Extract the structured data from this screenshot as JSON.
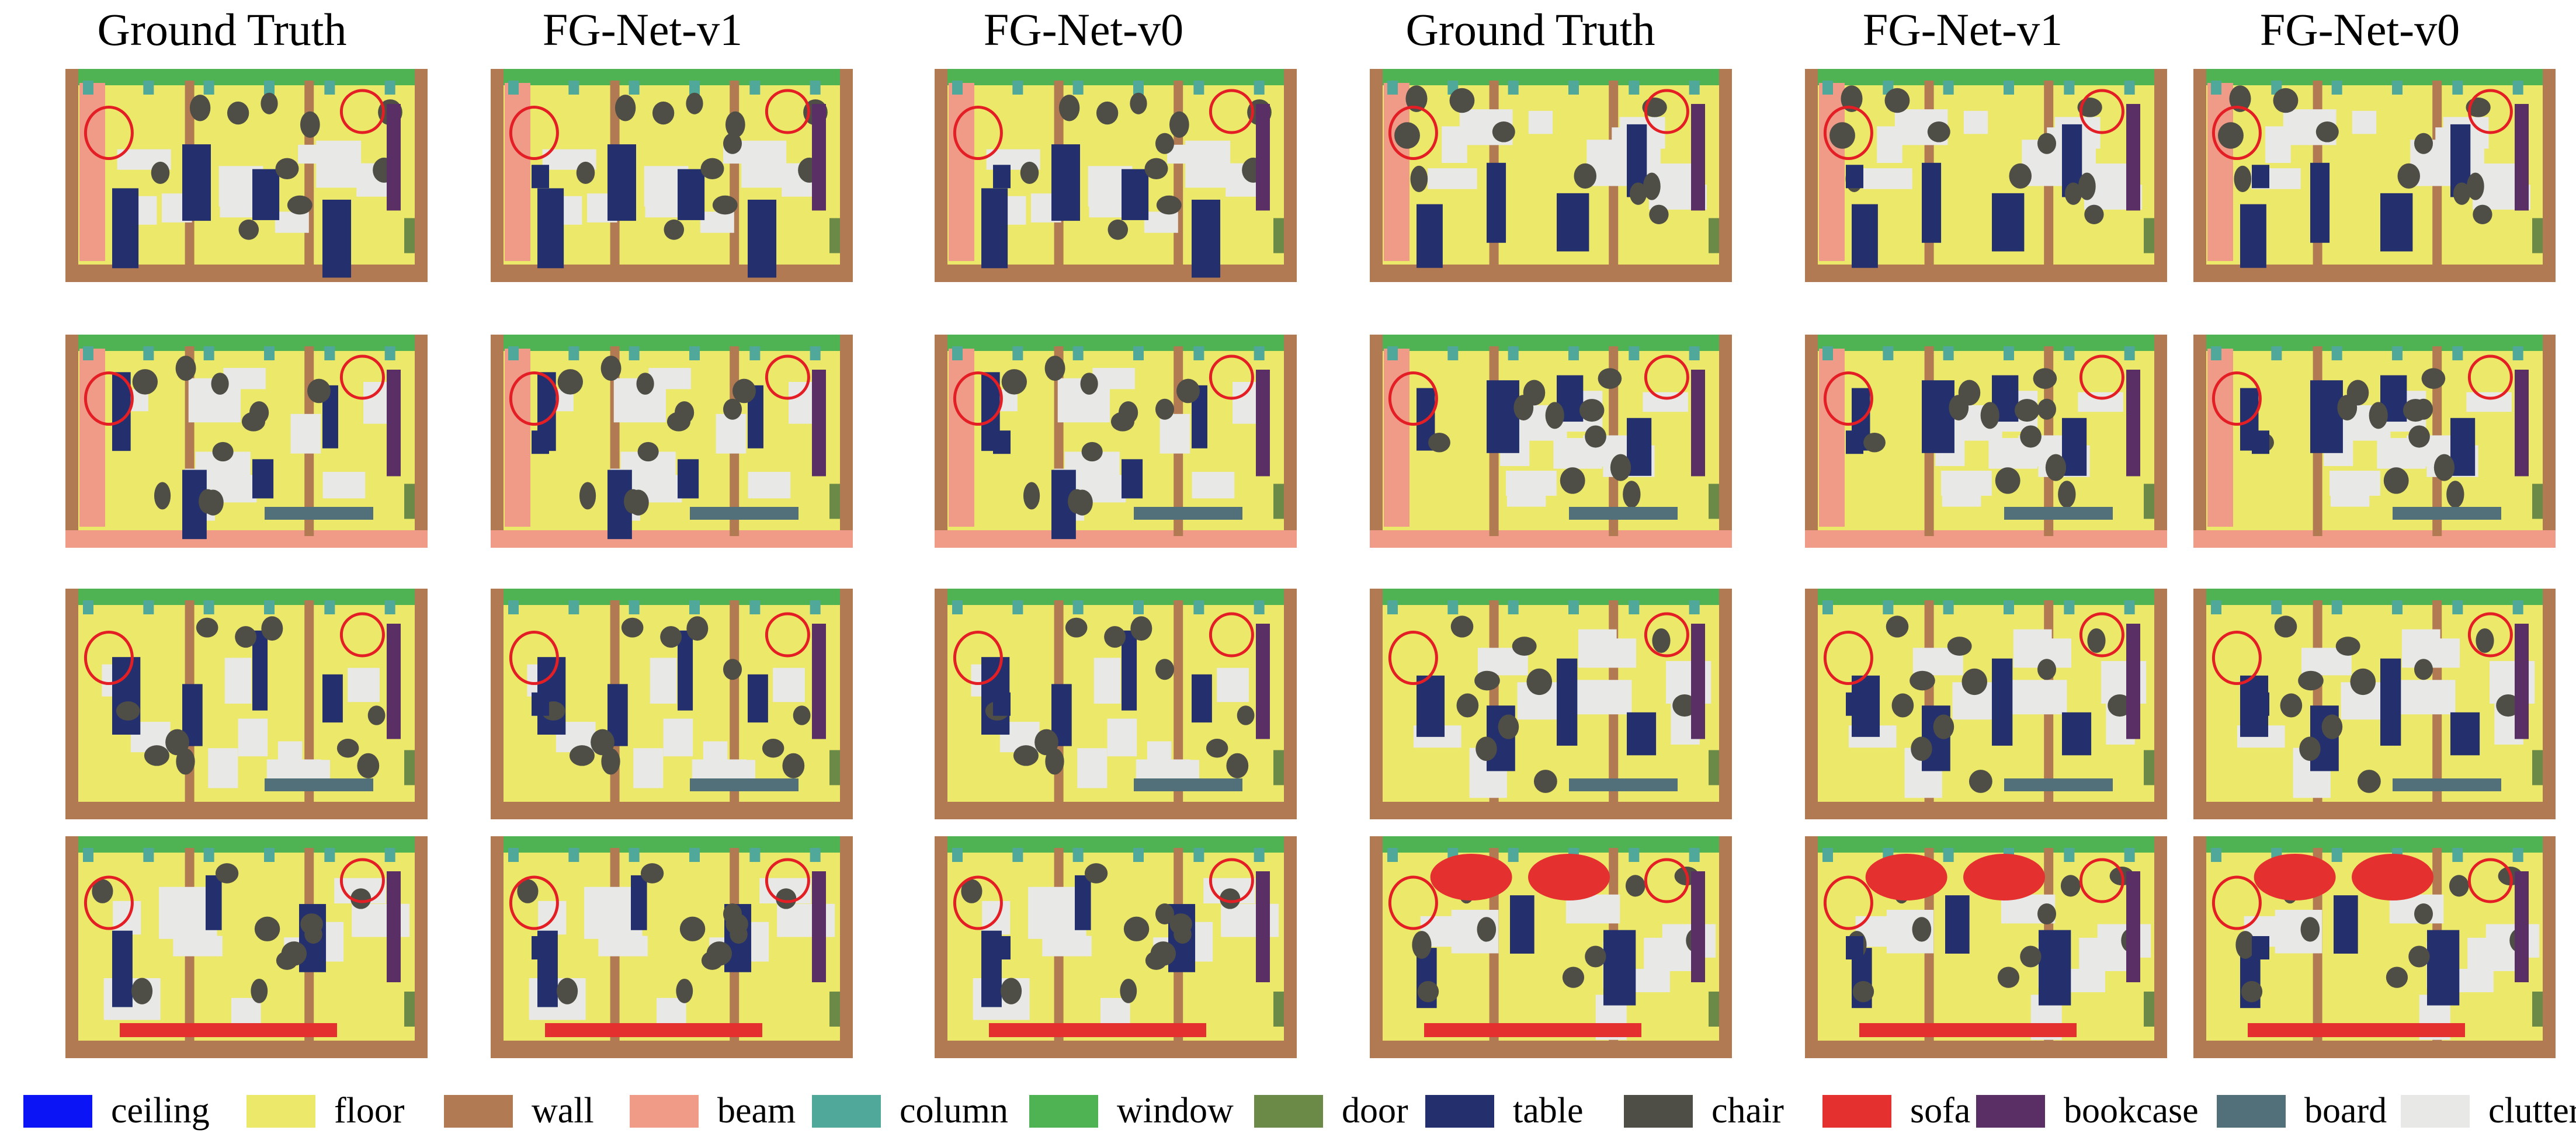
{
  "figure": {
    "column_titles": [
      "Ground Truth",
      "FG-Net-v1",
      "FG-Net-v0",
      "Ground Truth",
      "FG-Net-v1",
      "FG-Net-v0"
    ],
    "rows": 4,
    "panel_description": "top-down semantic segmentation of indoor point clouds, red circles mark differences"
  },
  "legend": [
    {
      "label": "ceiling",
      "color": "#0a14f5"
    },
    {
      "label": "floor",
      "color": "#ece86a"
    },
    {
      "label": "wall",
      "color": "#b27a52"
    },
    {
      "label": "beam",
      "color": "#f09a88"
    },
    {
      "label": "column",
      "color": "#4fa89a"
    },
    {
      "label": "window",
      "color": "#4fb354"
    },
    {
      "label": "door",
      "color": "#6b8a48"
    },
    {
      "label": "table",
      "color": "#24306e"
    },
    {
      "label": "chair",
      "color": "#4e4e46"
    },
    {
      "label": "sofa",
      "color": "#e53030"
    },
    {
      "label": "bookcase",
      "color": "#5a2f66"
    },
    {
      "label": "board",
      "color": "#52707a"
    },
    {
      "label": "clutter",
      "color": "#e8e8e6"
    }
  ],
  "colors": {
    "highlight_circle": "#e31e24",
    "background": "#ffffff"
  }
}
